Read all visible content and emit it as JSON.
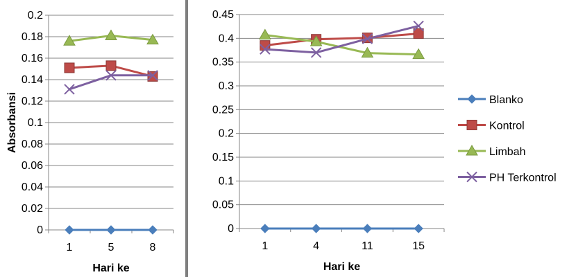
{
  "colors": {
    "Blanko": "#4a7ebb",
    "Kontrol": "#be4b48",
    "Limbah": "#98b954",
    "PH Terkontrol": "#7d60a0",
    "gridline": "#868686",
    "separator": "#7f7f7f"
  },
  "legend": {
    "placement": "right",
    "items": [
      {
        "label": "Blanko",
        "marker": "diamond"
      },
      {
        "label": "Kontrol",
        "marker": "square"
      },
      {
        "label": "Limbah",
        "marker": "triangle"
      },
      {
        "label": "PH Terkontrol",
        "marker": "x"
      }
    ]
  },
  "chart_data": [
    {
      "type": "line",
      "xlabel": "Hari ke",
      "ylabel": "Absorbansi",
      "categories": [
        "1",
        "5",
        "8"
      ],
      "ylim": [
        0,
        0.2
      ],
      "yticks": [
        "0",
        "0.02",
        "0.04",
        "0.06",
        "0.08",
        "0.1",
        "0.12",
        "0.14",
        "0.16",
        "0.18",
        "0.2"
      ],
      "grid": true,
      "series": [
        {
          "name": "Blanko",
          "values": [
            0,
            0,
            0
          ]
        },
        {
          "name": "Kontrol",
          "values": [
            0.151,
            0.153,
            0.143
          ]
        },
        {
          "name": "Limbah",
          "values": [
            0.176,
            0.181,
            0.177
          ]
        },
        {
          "name": "PH Terkontrol",
          "values": [
            0.131,
            0.144,
            0.144
          ]
        }
      ]
    },
    {
      "type": "line",
      "xlabel": "Hari ke",
      "ylabel": "",
      "categories": [
        "1",
        "4",
        "11",
        "15"
      ],
      "ylim": [
        0,
        0.45
      ],
      "yticks": [
        "0",
        "0.05",
        "0.1",
        "0.15",
        "0.2",
        "0.25",
        "0.3",
        "0.35",
        "0.4",
        "0.45"
      ],
      "grid": true,
      "series": [
        {
          "name": "Blanko",
          "values": [
            0,
            0,
            0,
            0
          ]
        },
        {
          "name": "Kontrol",
          "values": [
            0.385,
            0.398,
            0.401,
            0.41
          ]
        },
        {
          "name": "Limbah",
          "values": [
            0.407,
            0.393,
            0.369,
            0.366
          ]
        },
        {
          "name": "PH Terkontrol",
          "values": [
            0.377,
            0.37,
            0.399,
            0.426
          ]
        }
      ]
    }
  ]
}
